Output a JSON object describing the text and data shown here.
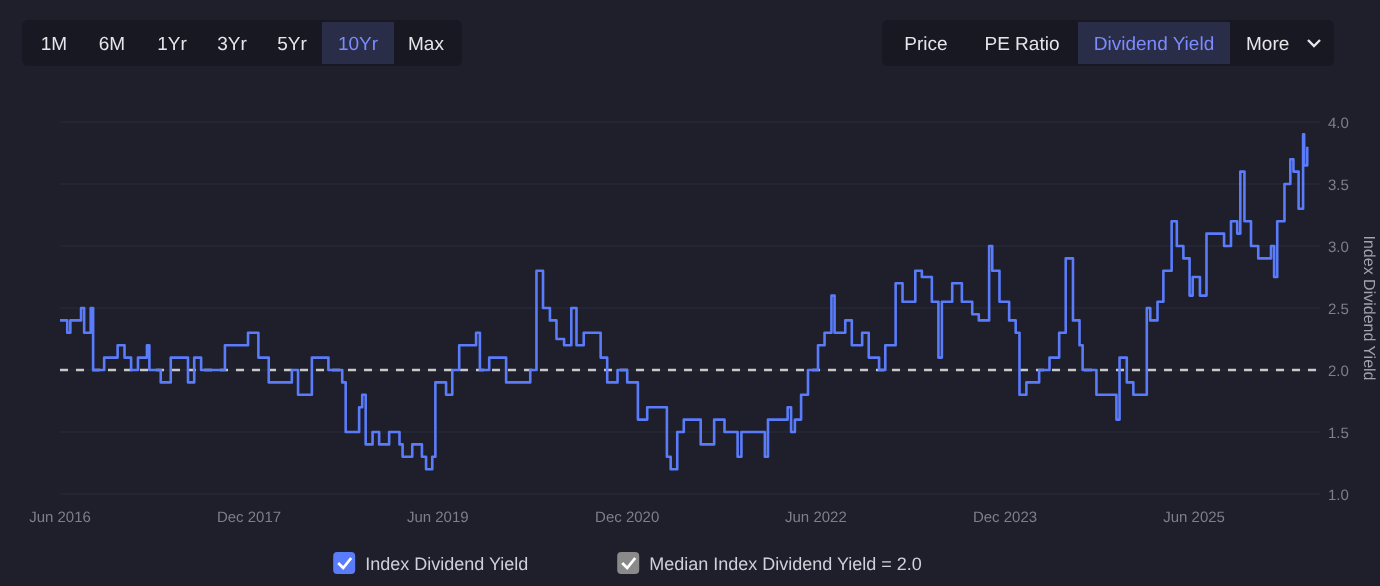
{
  "chart_data": {
    "type": "step",
    "ylabel": "Index Dividend Yield",
    "annotations": [
      "1M",
      "6M",
      "1Yr",
      "3Yr",
      "5Yr",
      "10Yr",
      "Max",
      "Price",
      "PE Ratio",
      "Dividend Yield",
      "More"
    ],
    "x": [
      "2016-06-01",
      "2016-06-22",
      "2016-07-01",
      "2016-07-20",
      "2016-08-01",
      "2016-08-10",
      "2016-08-29",
      "2016-09-05",
      "2016-10-07",
      "2016-11-15",
      "2016-12-05",
      "2016-12-24",
      "2017-01-13",
      "2017-02-08",
      "2017-02-15",
      "2017-03-20",
      "2017-04-18",
      "2017-05-08",
      "2017-06-07",
      "2017-06-25",
      "2017-07-15",
      "2017-09-22",
      "2017-11-10",
      "2017-11-28",
      "2017-12-28",
      "2018-01-17",
      "2018-01-27",
      "2018-04-04",
      "2018-04-22",
      "2018-06-01",
      "2018-07-19",
      "2018-08-28",
      "2018-09-07",
      "2018-10-07",
      "2018-10-16",
      "2018-10-25",
      "2018-11-04",
      "2018-11-24",
      "2018-12-13",
      "2019-01-11",
      "2019-02-10",
      "2019-02-19",
      "2019-03-19",
      "2019-04-16",
      "2019-04-28",
      "2019-05-16",
      "2019-05-25",
      "2019-06-25",
      "2019-07-13",
      "2019-08-02",
      "2019-09-20",
      "2019-10-01",
      "2019-10-28",
      "2019-12-16",
      "2020-02-24",
      "2020-03-13",
      "2020-04-01",
      "2020-04-21",
      "2020-05-10",
      "2020-06-01",
      "2020-06-22",
      "2020-07-07",
      "2020-07-28",
      "2020-08-25",
      "2020-09-15",
      "2020-10-04",
      "2020-11-03",
      "2020-12-01",
      "2021-01-01",
      "2021-01-28",
      "2021-03-16",
      "2021-03-26",
      "2021-04-06",
      "2021-04-25",
      "2021-05-14",
      "2021-07-02",
      "2021-08-10",
      "2021-09-09",
      "2021-10-17",
      "2021-10-28",
      "2021-12-06",
      "2022-01-04",
      "2022-01-13",
      "2022-02-20",
      "2022-03-11",
      "2022-03-21",
      "2022-04-01",
      "2022-04-19",
      "2022-05-09",
      "2022-06-07",
      "2022-06-26",
      "2022-07-16",
      "2022-07-25",
      "2022-08-25",
      "2022-09-13",
      "2022-10-13",
      "2022-11-01",
      "2022-12-01",
      "2022-12-19",
      "2023-01-09",
      "2023-01-18",
      "2023-02-07",
      "2023-02-25",
      "2023-03-16",
      "2023-04-04",
      "2023-05-03",
      "2023-05-22",
      "2023-06-01",
      "2023-07-01",
      "2023-07-29",
      "2023-08-28",
      "2023-09-16",
      "2023-10-16",
      "2023-10-25",
      "2023-11-15",
      "2023-12-13",
      "2024-01-01",
      "2024-01-12",
      "2024-02-01",
      "2024-03-09",
      "2024-04-08",
      "2024-05-06",
      "2024-05-25",
      "2024-06-15",
      "2024-07-04",
      "2024-07-13",
      "2024-08-22",
      "2024-10-10",
      "2024-10-19",
      "2024-10-28",
      "2024-11-18",
      "2024-12-07",
      "2025-01-15",
      "2025-01-25",
      "2025-02-15",
      "2025-03-04",
      "2025-03-28",
      "2025-04-12",
      "2025-05-01",
      "2025-05-19",
      "2025-05-28",
      "2025-06-18",
      "2025-07-07",
      "2025-08-06",
      "2025-08-27",
      "2025-09-16",
      "2025-10-04",
      "2025-10-13",
      "2025-10-25",
      "2025-11-13",
      "2025-12-04",
      "2025-12-22",
      "2026-01-10",
      "2026-01-19",
      "2026-01-28",
      "2026-02-18",
      "2026-03-07",
      "2026-03-16",
      "2026-03-31",
      "2026-04-13",
      "2026-04-16",
      "2026-04-25"
    ],
    "series": [
      {
        "name": "Index Dividend Yield",
        "color": "#5b7cfa",
        "values": [
          2.4,
          2.3,
          2.4,
          2.4,
          2.5,
          2.3,
          2.5,
          2.0,
          2.1,
          2.2,
          2.1,
          2.0,
          2.1,
          2.2,
          2.0,
          1.9,
          2.1,
          2.1,
          1.9,
          2.1,
          2.0,
          2.2,
          2.2,
          2.3,
          2.1,
          2.1,
          1.9,
          2.0,
          1.8,
          2.1,
          2.0,
          1.9,
          1.5,
          1.5,
          1.7,
          1.8,
          1.4,
          1.5,
          1.4,
          1.5,
          1.4,
          1.3,
          1.4,
          1.3,
          1.2,
          1.3,
          1.9,
          1.8,
          2.0,
          2.2,
          2.3,
          2.0,
          2.1,
          1.9,
          2.0,
          2.8,
          2.5,
          2.4,
          2.25,
          2.2,
          2.5,
          2.2,
          2.3,
          2.3,
          2.1,
          1.9,
          2.0,
          1.9,
          1.6,
          1.7,
          1.7,
          1.3,
          1.2,
          1.5,
          1.6,
          1.4,
          1.6,
          1.5,
          1.3,
          1.5,
          1.5,
          1.3,
          1.6,
          1.6,
          1.7,
          1.5,
          1.6,
          1.8,
          2.0,
          2.2,
          2.3,
          2.6,
          2.3,
          2.4,
          2.2,
          2.3,
          2.1,
          2.0,
          2.2,
          2.2,
          2.7,
          2.55,
          2.55,
          2.8,
          2.75,
          2.55,
          2.1,
          2.55,
          2.7,
          2.55,
          2.45,
          2.4,
          3.0,
          2.8,
          2.55,
          2.4,
          2.3,
          1.8,
          1.9,
          2.0,
          2.1,
          2.3,
          2.9,
          2.4,
          2.2,
          2.0,
          1.8,
          1.8,
          1.6,
          2.1,
          1.9,
          1.8,
          2.5,
          2.4,
          2.55,
          2.8,
          3.2,
          3.0,
          2.9,
          2.6,
          2.75,
          2.6,
          3.1,
          3.1,
          3.0,
          3.2,
          3.1,
          3.6,
          3.2,
          3.0,
          2.9,
          2.9,
          3.0,
          2.75,
          3.2,
          3.5,
          3.7,
          3.6,
          3.3,
          3.9,
          3.65,
          3.8
        ]
      }
    ],
    "xlim": [
      "2016-06-01",
      "2026-06-01"
    ],
    "xticks": [
      {
        "value": "2016-06-01",
        "label": "Jun 2016"
      },
      {
        "value": "2017-12-01",
        "label": "Dec 2017"
      },
      {
        "value": "2019-06-01",
        "label": "Jun 2019"
      },
      {
        "value": "2020-12-01",
        "label": "Dec 2020"
      },
      {
        "value": "2022-06-01",
        "label": "Jun 2022"
      },
      {
        "value": "2023-12-01",
        "label": "Dec 2023"
      },
      {
        "value": "2025-06-01",
        "label": "Jun 2025"
      }
    ],
    "ylim": [
      1,
      4
    ],
    "yticks": [
      {
        "value": 1,
        "label": "1.0"
      },
      1.5,
      {
        "value": 2,
        "label": "2.0"
      },
      2.5,
      {
        "value": 3,
        "label": "3.0"
      },
      3.5,
      {
        "value": 4,
        "label": "4.0"
      }
    ],
    "ref_lines": [
      {
        "axis": "y",
        "value": 2.0,
        "label": "Median Index Dividend Yield = 2.0",
        "color": "#c8c8c8",
        "line_style": "dashed"
      }
    ],
    "grid": "y",
    "legend": "bottom"
  }
}
